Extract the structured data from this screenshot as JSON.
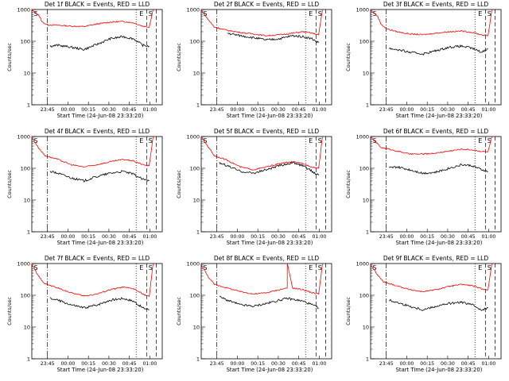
{
  "chart_data": [
    {
      "type": "line",
      "title": "Det 1f BLACK = Events, RED = LLD",
      "xlabel": "Start Time (24-Jun-08 23:33:20)",
      "ylabel": "Counts/sec",
      "yscale": "log",
      "ylim": [
        1,
        1000
      ],
      "xticks": [
        "23:45",
        "00:00",
        "00:15",
        "00:30",
        "00:45",
        "01:00"
      ],
      "yticks": [
        "1",
        "10",
        "100",
        "1000"
      ],
      "markers": [
        "S",
        "E",
        "S"
      ],
      "series": [
        {
          "color": "#ff0000",
          "x": [
            0,
            0.05,
            0.08,
            0.12,
            0.2,
            0.3,
            0.4,
            0.5,
            0.6,
            0.7,
            0.78,
            0.85,
            0.9,
            0.93
          ],
          "values": [
            950,
            700,
            400,
            330,
            320,
            300,
            290,
            350,
            400,
            420,
            380,
            300,
            280,
            1000
          ]
        },
        {
          "color": "#000000",
          "x": [
            0.14,
            0.2,
            0.3,
            0.4,
            0.5,
            0.6,
            0.7,
            0.78,
            0.85,
            0.9
          ],
          "values": [
            70,
            75,
            65,
            55,
            80,
            120,
            140,
            120,
            75,
            70
          ]
        }
      ]
    },
    {
      "type": "line",
      "title": "Det 2f BLACK = Events, RED = LLD",
      "xlabel": "Start Time (24-Jun-08 23:33:20)",
      "ylabel": "Counts/sec",
      "yscale": "log",
      "ylim": [
        1,
        1000
      ],
      "xticks": [
        "23:45",
        "00:00",
        "00:15",
        "00:30",
        "00:45",
        "01:00"
      ],
      "yticks": [
        "1",
        "10",
        "100",
        "1000"
      ],
      "markers": [
        "S",
        "E",
        "S"
      ],
      "series": [
        {
          "color": "#ff0000",
          "x": [
            0,
            0.05,
            0.1,
            0.2,
            0.3,
            0.4,
            0.5,
            0.6,
            0.7,
            0.78,
            0.85,
            0.9,
            0.93
          ],
          "values": [
            950,
            500,
            280,
            220,
            190,
            170,
            150,
            160,
            180,
            200,
            180,
            160,
            1000
          ]
        },
        {
          "color": "#000000",
          "x": [
            0.2,
            0.3,
            0.4,
            0.5,
            0.6,
            0.7,
            0.78,
            0.85,
            0.9
          ],
          "values": [
            180,
            150,
            130,
            110,
            120,
            150,
            140,
            120,
            90
          ]
        }
      ]
    },
    {
      "type": "line",
      "title": "Det 3f BLACK = Events, RED = LLD",
      "xlabel": "Start Time (24-Jun-08 23:33:20)",
      "ylabel": "Counts/sec",
      "yscale": "log",
      "ylim": [
        1,
        1000
      ],
      "xticks": [
        "23:45",
        "00:00",
        "00:15",
        "00:30",
        "00:45",
        "01:00"
      ],
      "yticks": [
        "1",
        "10",
        "100",
        "1000"
      ],
      "markers": [
        "S",
        "E",
        "S"
      ],
      "series": [
        {
          "color": "#ff0000",
          "x": [
            0,
            0.05,
            0.08,
            0.12,
            0.2,
            0.3,
            0.4,
            0.5,
            0.6,
            0.7,
            0.78,
            0.85,
            0.9,
            0.93
          ],
          "values": [
            950,
            650,
            350,
            250,
            200,
            170,
            160,
            180,
            200,
            210,
            190,
            160,
            150,
            1000
          ]
        },
        {
          "color": "#000000",
          "x": [
            0.14,
            0.2,
            0.3,
            0.4,
            0.5,
            0.6,
            0.7,
            0.78,
            0.85,
            0.9
          ],
          "values": [
            60,
            55,
            45,
            40,
            50,
            65,
            70,
            60,
            45,
            60
          ]
        }
      ]
    },
    {
      "type": "line",
      "title": "Det 4f BLACK = Events, RED = LLD",
      "xlabel": "Start Time (24-Jun-08 23:33:20)",
      "ylabel": "Counts/sec",
      "yscale": "log",
      "ylim": [
        1,
        1000
      ],
      "xticks": [
        "23:45",
        "00:00",
        "00:15",
        "00:30",
        "00:45",
        "01:00"
      ],
      "yticks": [
        "1",
        "10",
        "100",
        "1000"
      ],
      "markers": [
        "S",
        "E",
        "S"
      ],
      "series": [
        {
          "color": "#ff0000",
          "x": [
            0,
            0.05,
            0.1,
            0.2,
            0.3,
            0.4,
            0.5,
            0.6,
            0.7,
            0.78,
            0.85,
            0.9,
            0.93
          ],
          "values": [
            950,
            450,
            250,
            190,
            130,
            110,
            130,
            160,
            190,
            170,
            130,
            120,
            1000
          ]
        },
        {
          "color": "#000000",
          "x": [
            0.14,
            0.2,
            0.3,
            0.4,
            0.5,
            0.6,
            0.7,
            0.78,
            0.85,
            0.9
          ],
          "values": [
            80,
            70,
            50,
            40,
            55,
            70,
            80,
            65,
            45,
            40
          ]
        }
      ]
    },
    {
      "type": "line",
      "title": "Det 5f BLACK = Events, RED = LLD",
      "xlabel": "Start Time (24-Jun-08 23:33:20)",
      "ylabel": "Counts/sec",
      "yscale": "log",
      "ylim": [
        1,
        1000
      ],
      "xticks": [
        "23:45",
        "00:00",
        "00:15",
        "00:30",
        "00:45",
        "01:00"
      ],
      "yticks": [
        "1",
        "10",
        "100",
        "1000"
      ],
      "markers": [
        "S",
        "E",
        "S"
      ],
      "series": [
        {
          "color": "#ff0000",
          "x": [
            0,
            0.05,
            0.1,
            0.2,
            0.3,
            0.4,
            0.5,
            0.6,
            0.7,
            0.78,
            0.85,
            0.9,
            0.93
          ],
          "values": [
            950,
            500,
            250,
            180,
            110,
            90,
            110,
            140,
            160,
            140,
            110,
            100,
            1000
          ]
        },
        {
          "color": "#000000",
          "x": [
            0.14,
            0.2,
            0.3,
            0.4,
            0.5,
            0.6,
            0.7,
            0.78,
            0.85,
            0.9
          ],
          "values": [
            150,
            120,
            80,
            70,
            90,
            120,
            150,
            120,
            80,
            60
          ]
        }
      ]
    },
    {
      "type": "line",
      "title": "Det 6f BLACK = Events, RED = LLD",
      "xlabel": "Start Time (24-Jun-08 23:33:20)",
      "ylabel": "Counts/sec",
      "yscale": "log",
      "ylim": [
        1,
        1000
      ],
      "xticks": [
        "23:45",
        "00:00",
        "00:15",
        "00:30",
        "00:45",
        "01:00"
      ],
      "yticks": [
        "1",
        "10",
        "100",
        "1000"
      ],
      "markers": [
        "S",
        "E",
        "S"
      ],
      "series": [
        {
          "color": "#ff0000",
          "x": [
            0,
            0.05,
            0.08,
            0.12,
            0.2,
            0.3,
            0.4,
            0.5,
            0.6,
            0.7,
            0.78,
            0.85,
            0.9,
            0.93
          ],
          "values": [
            950,
            600,
            450,
            420,
            350,
            280,
            280,
            300,
            350,
            400,
            380,
            340,
            330,
            1000
          ]
        },
        {
          "color": "#000000",
          "x": [
            0.14,
            0.2,
            0.3,
            0.4,
            0.5,
            0.6,
            0.7,
            0.78,
            0.85,
            0.9
          ],
          "values": [
            100,
            110,
            90,
            70,
            75,
            100,
            130,
            120,
            90,
            80
          ]
        }
      ]
    },
    {
      "type": "line",
      "title": "Det 7f BLACK = Events, RED = LLD",
      "xlabel": "Start Time (24-Jun-08 23:33:20)",
      "ylabel": "Counts/sec",
      "yscale": "log",
      "ylim": [
        1,
        1000
      ],
      "xticks": [
        "23:45",
        "00:00",
        "00:15",
        "00:30",
        "00:45",
        "01:00"
      ],
      "yticks": [
        "1",
        "10",
        "100",
        "1000"
      ],
      "markers": [
        "S",
        "E",
        "S"
      ],
      "series": [
        {
          "color": "#ff0000",
          "x": [
            0,
            0.05,
            0.1,
            0.2,
            0.3,
            0.4,
            0.5,
            0.6,
            0.7,
            0.78,
            0.85,
            0.9,
            0.93
          ],
          "values": [
            950,
            400,
            230,
            170,
            120,
            95,
            110,
            150,
            180,
            160,
            110,
            90,
            1000
          ]
        },
        {
          "color": "#000000",
          "x": [
            0.14,
            0.2,
            0.3,
            0.4,
            0.5,
            0.6,
            0.7,
            0.78,
            0.85,
            0.9
          ],
          "values": [
            80,
            70,
            50,
            40,
            50,
            70,
            80,
            65,
            40,
            35
          ]
        }
      ]
    },
    {
      "type": "line",
      "title": "Det 8f BLACK = Events, RED = LLD",
      "xlabel": "Start Time (24-Jun-08 23:33:20)",
      "ylabel": "Counts/sec",
      "yscale": "log",
      "ylim": [
        1,
        1000
      ],
      "xticks": [
        "23:45",
        "00:00",
        "00:15",
        "00:30",
        "00:45",
        "01:00"
      ],
      "yticks": [
        "1",
        "10",
        "100",
        "1000"
      ],
      "markers": [
        "S",
        "E",
        "S"
      ],
      "series": [
        {
          "color": "#ff0000",
          "x": [
            0,
            0.05,
            0.1,
            0.2,
            0.3,
            0.4,
            0.5,
            0.6,
            0.66,
            0.66,
            0.7,
            0.78,
            0.85,
            0.9,
            0.93
          ],
          "values": [
            950,
            400,
            220,
            170,
            130,
            110,
            120,
            150,
            170,
            1000,
            170,
            150,
            120,
            110,
            1000
          ]
        },
        {
          "color": "#000000",
          "x": [
            0.14,
            0.2,
            0.3,
            0.4,
            0.5,
            0.6,
            0.66,
            0.7,
            0.78,
            0.85,
            0.9
          ],
          "values": [
            90,
            70,
            50,
            45,
            55,
            70,
            80,
            75,
            65,
            50,
            40
          ]
        }
      ]
    },
    {
      "type": "line",
      "title": "Det 9f BLACK = Events, RED = LLD",
      "xlabel": "Start Time (24-Jun-08 23:33:20)",
      "ylabel": "Counts/sec",
      "yscale": "log",
      "ylim": [
        1,
        1000
      ],
      "xticks": [
        "23:45",
        "00:00",
        "00:15",
        "00:30",
        "00:45",
        "01:00"
      ],
      "yticks": [
        "1",
        "10",
        "100",
        "1000"
      ],
      "markers": [
        "S",
        "E",
        "S"
      ],
      "series": [
        {
          "color": "#ff0000",
          "x": [
            0,
            0.05,
            0.1,
            0.2,
            0.3,
            0.4,
            0.5,
            0.6,
            0.7,
            0.78,
            0.85,
            0.9,
            0.93
          ],
          "values": [
            950,
            450,
            260,
            200,
            150,
            130,
            150,
            190,
            220,
            200,
            160,
            150,
            1000
          ]
        },
        {
          "color": "#000000",
          "x": [
            0.14,
            0.2,
            0.3,
            0.4,
            0.5,
            0.6,
            0.7,
            0.78,
            0.85,
            0.9
          ],
          "values": [
            70,
            60,
            45,
            35,
            45,
            55,
            60,
            50,
            35,
            40
          ]
        }
      ]
    }
  ]
}
